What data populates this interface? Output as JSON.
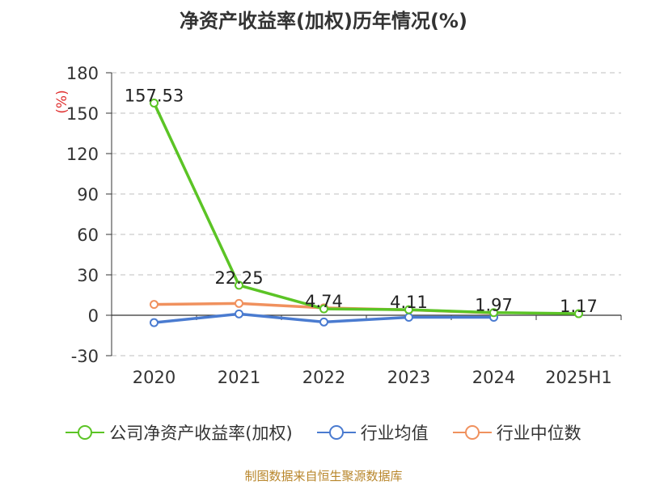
{
  "title": "净资产收益率(加权)历年情况(%)",
  "source": "制图数据来自恒生聚源数据库",
  "chart_data": {
    "type": "line",
    "title": "净资产收益率(加权)历年情况(%)",
    "ylabel": "(%)",
    "xlabel": "",
    "categories": [
      "2020",
      "2021",
      "2022",
      "2023",
      "2024",
      "2025H1"
    ],
    "ylim": [
      -30,
      180
    ],
    "yticks": [
      -30,
      0,
      30,
      60,
      90,
      120,
      150,
      180
    ],
    "grid": true,
    "legend_position": "bottom",
    "series": [
      {
        "name": "公司净资产收益率(加权)",
        "color": "#5bc425",
        "values": [
          157.53,
          22.25,
          4.74,
          4.11,
          1.97,
          1.17
        ],
        "labels": [
          "157.53",
          "22.25",
          "4.74",
          "4.11",
          "1.97",
          "1.17"
        ]
      },
      {
        "name": "行业均值",
        "color": "#4a7bd0",
        "values": [
          -5.5,
          1.0,
          -5.0,
          -1.5,
          -1.5,
          null
        ]
      },
      {
        "name": "行业中位数",
        "color": "#f0915e",
        "values": [
          8.0,
          8.8,
          5.5,
          4.0,
          1.7,
          null
        ]
      }
    ]
  }
}
